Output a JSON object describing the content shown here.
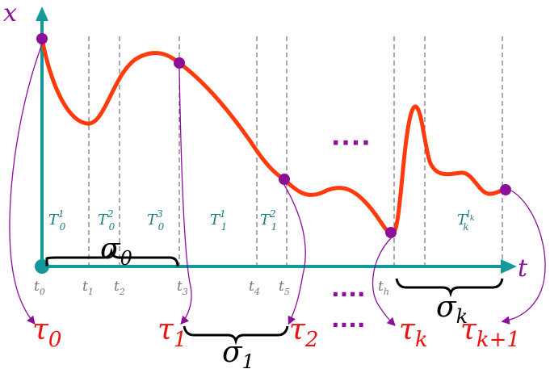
{
  "axes": {
    "y_label": "x",
    "x_label": "t"
  },
  "time_ticks": {
    "t0": {
      "base": "t",
      "sub": "0"
    },
    "t1": {
      "base": "t",
      "sub": "1"
    },
    "t2": {
      "base": "t",
      "sub": "2"
    },
    "t3": {
      "base": "t",
      "sub": "3"
    },
    "t4": {
      "base": "t",
      "sub": "4"
    },
    "t5": {
      "base": "t",
      "sub": "5"
    },
    "th": {
      "base": "t",
      "sub": "h"
    }
  },
  "interval_labels": {
    "T01": {
      "base": "T",
      "sub": "0",
      "sup": "1"
    },
    "T02": {
      "base": "T",
      "sub": "0",
      "sup": "2"
    },
    "T03": {
      "base": "T",
      "sub": "0",
      "sup": "3"
    },
    "T11": {
      "base": "T",
      "sub": "1",
      "sup": "1"
    },
    "T12": {
      "base": "T",
      "sub": "1",
      "sup": "2"
    },
    "Tk": {
      "base": "T",
      "sub": "k",
      "sup": "l",
      "supsub": "k"
    }
  },
  "switch_times": {
    "tau0": {
      "base": "τ",
      "sub": "0"
    },
    "tau1": {
      "base": "τ",
      "sub": "1"
    },
    "tau2": {
      "base": "τ",
      "sub": "2"
    },
    "tauk": {
      "base": "τ",
      "sub": "k"
    },
    "tauk1": {
      "base": "τ",
      "sub": "k+1"
    }
  },
  "segments": {
    "sigma0": {
      "base": "σ",
      "sub": "0"
    },
    "sigma1": {
      "base": "σ",
      "sub": "1"
    },
    "sigmak": {
      "base": "σ",
      "sub": "k"
    }
  },
  "ellipses": {
    "upper": "····",
    "lower1": "····",
    "lower2": "····"
  },
  "colors": {
    "axis": "#14999a",
    "curve": "#ff3a0c",
    "point": "#8c0f9a",
    "tau": "#ee1111",
    "interval": "#1a7f85",
    "tick": "#777777"
  }
}
